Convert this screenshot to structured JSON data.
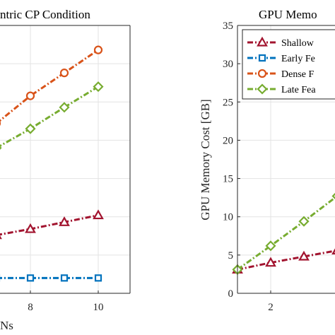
{
  "chart_data": [
    {
      "type": "line",
      "title": "ntric CP Condition",
      "xlabel": "Ns",
      "ylabel": "",
      "xlim": [
        6,
        11
      ],
      "ylim": [
        0,
        35
      ],
      "xticks": [
        "8",
        "10"
      ],
      "yticks": [],
      "grid": true,
      "series": [
        {
          "color": "#d95319",
          "marker": "circle",
          "x": [
            7,
            8,
            9,
            10
          ],
          "y": [
            22.2,
            25.8,
            28.8,
            31.8
          ]
        },
        {
          "color": "#77ac30",
          "marker": "diamond",
          "x": [
            7,
            8,
            9,
            10
          ],
          "y": [
            19.0,
            21.5,
            24.3,
            27.0
          ]
        },
        {
          "color": "#a2142f",
          "marker": "triangle",
          "x": [
            7,
            8,
            9,
            10
          ],
          "y": [
            7.6,
            8.4,
            9.3,
            10.2
          ]
        },
        {
          "color": "#0072bd",
          "marker": "square",
          "x": [
            7,
            8,
            9,
            10
          ],
          "y": [
            2.0,
            2.0,
            2.0,
            2.0
          ]
        }
      ]
    },
    {
      "type": "line",
      "title": "GPU Memo",
      "xlabel": "",
      "ylabel": "GPU Memory Cost [GB]",
      "xlim": [
        1.5,
        4.5
      ],
      "ylim": [
        0,
        35
      ],
      "xticks": [
        "2"
      ],
      "yticks": [
        "0",
        "5",
        "10",
        "15",
        "20",
        "25",
        "30",
        "35"
      ],
      "grid": true,
      "legend_position": "top-left",
      "series": [
        {
          "name": "Shallow",
          "color": "#a2142f",
          "marker": "triangle",
          "x": [
            1.5,
            2,
            2.5,
            3
          ],
          "y": [
            3.1,
            4.0,
            4.8,
            5.6
          ]
        },
        {
          "name": "Early Fe",
          "color": "#0072bd",
          "marker": "square",
          "x": [],
          "y": []
        },
        {
          "name": "Dense F",
          "color": "#d95319",
          "marker": "circle",
          "x": [],
          "y": []
        },
        {
          "name": "Late Fea",
          "color": "#77ac30",
          "marker": "diamond",
          "x": [
            1.5,
            2,
            2.5,
            3
          ],
          "y": [
            3.1,
            6.2,
            9.4,
            12.7
          ]
        }
      ]
    }
  ]
}
